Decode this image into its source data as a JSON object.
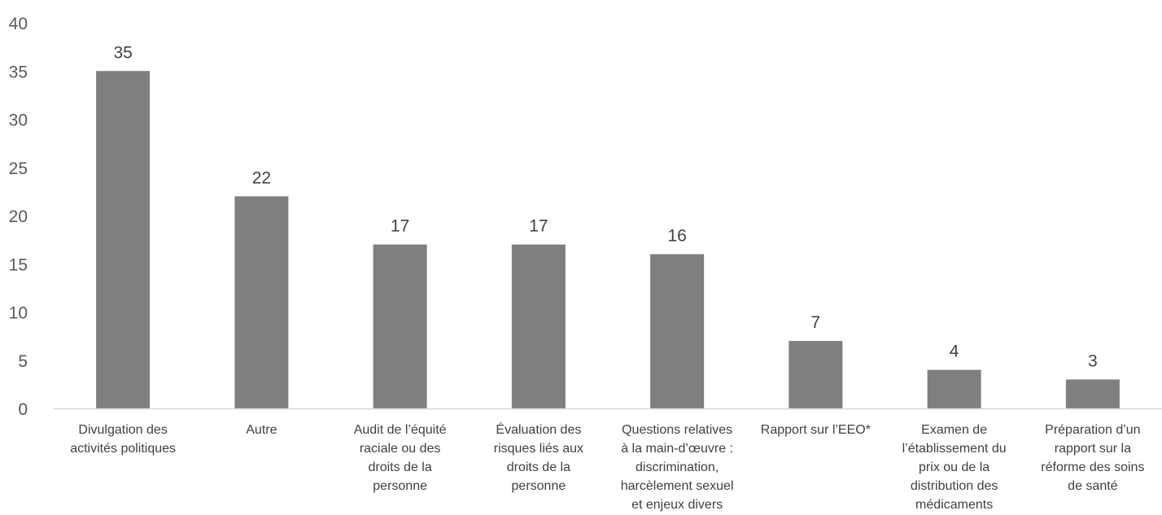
{
  "chart_data": {
    "type": "bar",
    "categories": [
      [
        "Divulgation des",
        "activités politiques"
      ],
      [
        "Autre"
      ],
      [
        "Audit de l’équité",
        "raciale ou des",
        "droits de la",
        "personne"
      ],
      [
        "Évaluation des",
        "risques liés aux",
        "droits de la",
        "personne"
      ],
      [
        "Questions relatives",
        "à la main-d’œuvre :",
        "discrimination,",
        "harcèlement sexuel",
        "et enjeux divers"
      ],
      [
        "Rapport sur l’EEO*"
      ],
      [
        "Examen de",
        "l’établissement du",
        "prix ou de la",
        "distribution des",
        "médicaments"
      ],
      [
        "Préparation d’un",
        "rapport sur la",
        "réforme des soins",
        "de santé"
      ]
    ],
    "values": [
      35,
      22,
      17,
      17,
      16,
      7,
      4,
      3
    ],
    "title": "",
    "xlabel": "",
    "ylabel": "",
    "ylim": [
      0,
      40
    ],
    "yticks": [
      "0",
      "5",
      "10",
      "15",
      "20",
      "25",
      "30",
      "35",
      "40"
    ],
    "grid": false,
    "legend": "none",
    "bar_color": "#7f7f7f",
    "axis_color": "#d9d9d9"
  }
}
